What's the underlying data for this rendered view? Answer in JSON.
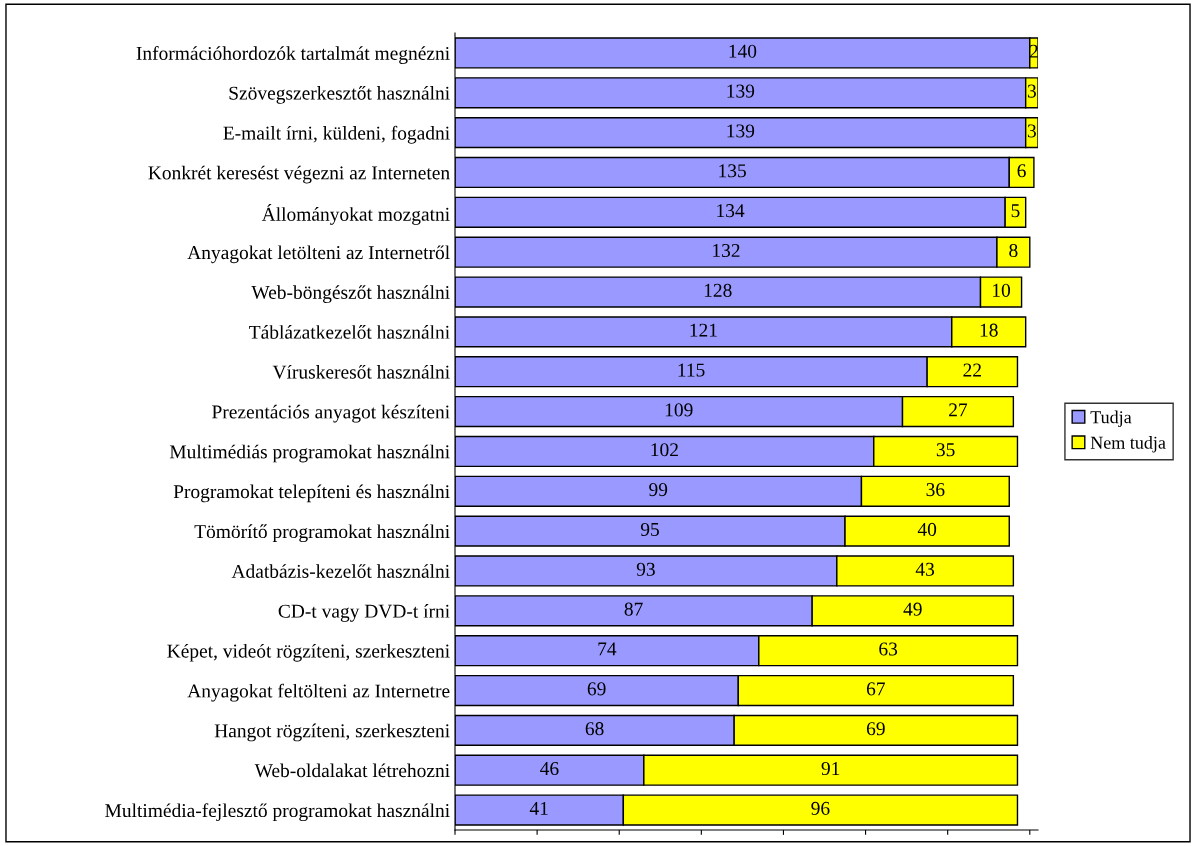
{
  "chart_data": {
    "type": "bar",
    "orientation": "horizontal",
    "stacked": true,
    "data_labels": true,
    "legend": "right",
    "tick_labels": "y",
    "categories": [
      "Információhordozók tartalmát megnézni",
      "Szövegszerkesztőt használni",
      "E-mailt írni, küldeni, fogadni",
      "Konkrét keresést végezni az Interneten",
      "Állományokat mozgatni",
      "Anyagokat letölteni az Internetről",
      "Web-böngészőt használni",
      "Táblázatkezelőt használni",
      "Víruskeresőt használni",
      "Prezentációs anyagot készíteni",
      "Multimédiás programokat használni",
      "Programokat telepíteni és használni",
      "Tömörítő programokat használni",
      "Adatbázis-kezelőt használni",
      "CD-t vagy DVD-t írni",
      "Képet, videót rögzíteni, szerkeszteni",
      "Anyagokat feltölteni az Internetre",
      "Hangot rögzíteni, szerkeszteni",
      "Web-oldalakat létrehozni",
      "Multimédia-fejlesztő programokat használni"
    ],
    "series": [
      {
        "name": "Tudja",
        "color": "#9999ff",
        "values": [
          140,
          139,
          139,
          135,
          134,
          132,
          128,
          121,
          115,
          109,
          102,
          99,
          95,
          93,
          87,
          74,
          69,
          68,
          46,
          41
        ]
      },
      {
        "name": "Nem tudja",
        "color": "#ffff00",
        "values": [
          2,
          3,
          3,
          6,
          5,
          8,
          10,
          18,
          22,
          27,
          35,
          36,
          40,
          43,
          49,
          63,
          67,
          69,
          91,
          96
        ]
      }
    ]
  }
}
